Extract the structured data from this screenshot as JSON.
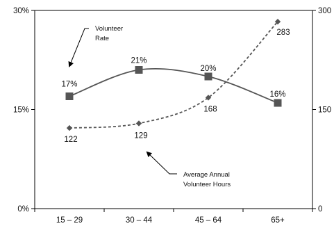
{
  "chart_data": {
    "type": "line",
    "categories": [
      "15 – 29",
      "30 – 44",
      "45 – 64",
      "65+"
    ],
    "y_left": {
      "ticks": [
        {
          "value": 0,
          "label": "0%"
        },
        {
          "value": 15,
          "label": "15%"
        },
        {
          "value": 30,
          "label": "30%"
        }
      ],
      "range": [
        0,
        30
      ]
    },
    "y_right": {
      "ticks": [
        {
          "value": 0,
          "label": "0"
        },
        {
          "value": 150,
          "label": "150"
        },
        {
          "value": 300,
          "label": "300"
        }
      ],
      "range": [
        0,
        300
      ]
    },
    "grid": false,
    "series": [
      {
        "axis": "left",
        "style": "solid",
        "marker": "square",
        "color": "#555555",
        "values": [
          17,
          21,
          20,
          16
        ],
        "labels": [
          "17%",
          "21%",
          "20%",
          "16%"
        ]
      },
      {
        "axis": "right",
        "style": "dashed",
        "marker": "diamond",
        "color": "#555555",
        "values": [
          122,
          129,
          168,
          283
        ],
        "labels": [
          "122",
          "129",
          "168",
          "283"
        ]
      }
    ],
    "annotations": [
      {
        "series": 0,
        "lines": [
          "Volunteer",
          "Rate"
        ]
      },
      {
        "series": 1,
        "lines": [
          "Average Annual",
          "Volunteer Hours"
        ]
      }
    ]
  }
}
